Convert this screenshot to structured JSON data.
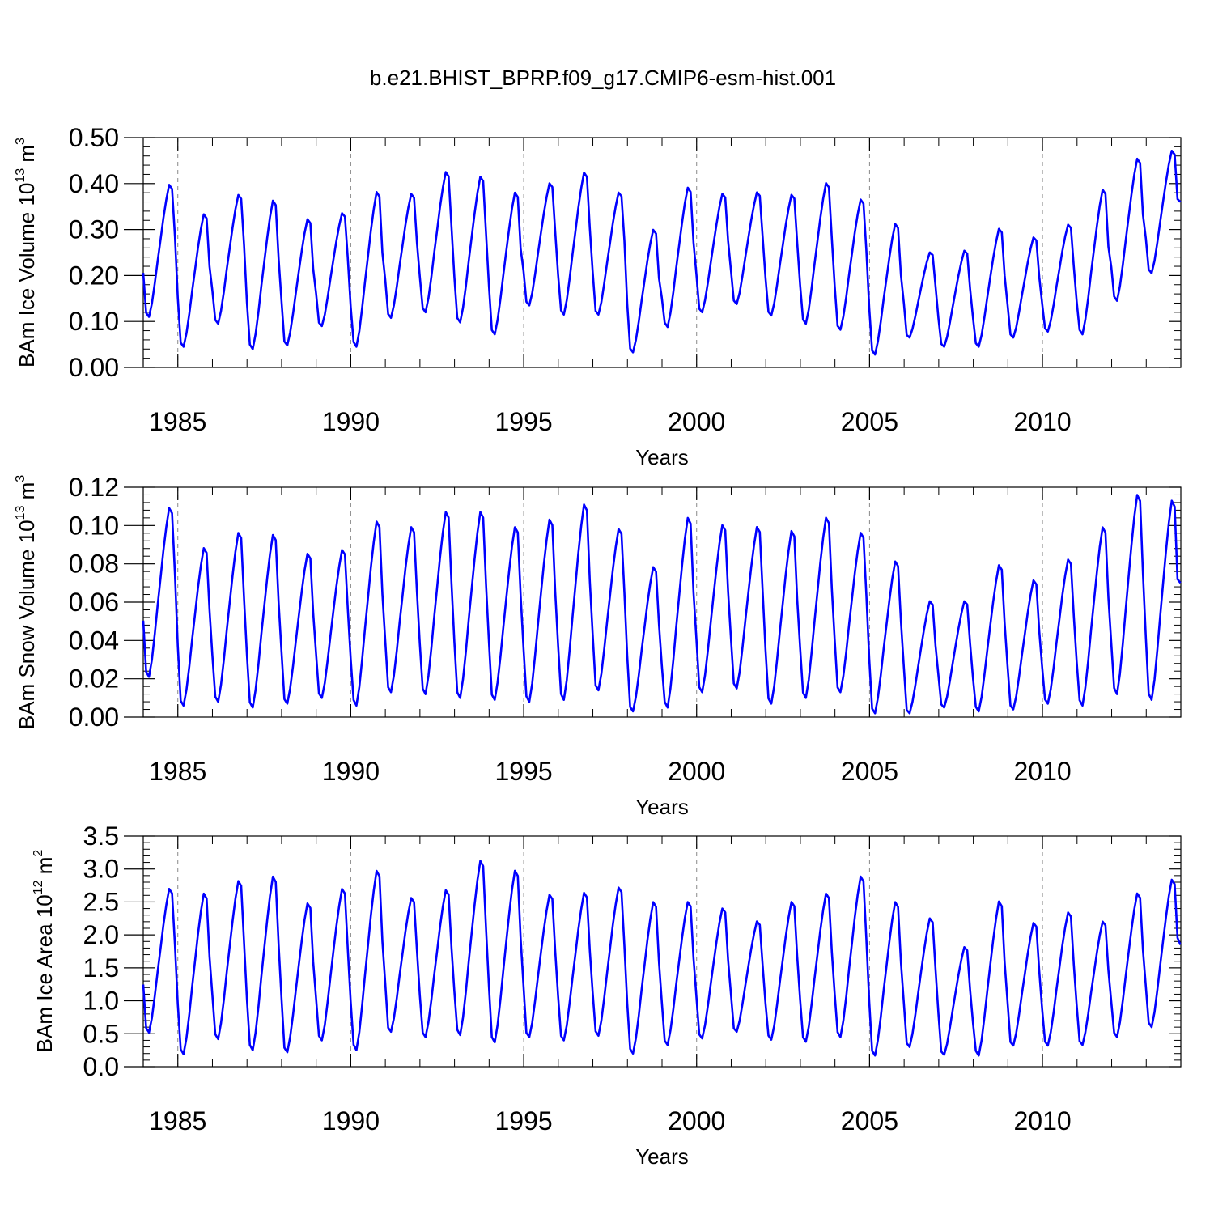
{
  "figure": {
    "title": "b.e21.BHIST_BPRP.f09_g17.CMIP6-esm-hist.001",
    "line_color": "#0000ff",
    "grid_color": "#888888"
  },
  "chart_data": [
    {
      "type": "line",
      "title": "",
      "xlabel": "Years",
      "ylabel": {
        "prefix": "BAm Ice Volume 10",
        "exponent": "13",
        "unit": " m",
        "unit_exponent": "3"
      },
      "xlim": [
        1984.0,
        2014.0
      ],
      "ylim": [
        0.0,
        0.5
      ],
      "x_ticks": [
        1985,
        1990,
        1995,
        2000,
        2005,
        2010
      ],
      "x_tick_labels": [
        "1985",
        "1990",
        "1995",
        "2000",
        "2005",
        "2010"
      ],
      "y_ticks": [
        0.0,
        0.1,
        0.2,
        0.3,
        0.4,
        0.5
      ],
      "y_tick_labels": [
        "0.00",
        "0.10",
        "0.20",
        "0.30",
        "0.40",
        "0.50"
      ],
      "vertical_gridlines": [
        1985,
        1990,
        1995,
        2000,
        2005,
        2010
      ],
      "x_start": 1984.0,
      "x_step": 0.0833,
      "series": [
        {
          "name": "BAm Ice Volume",
          "annual_min": [
            0.11,
            0.045,
            0.095,
            0.04,
            0.048,
            0.09,
            0.045,
            0.108,
            0.12,
            0.098,
            0.072,
            0.135,
            0.115,
            0.115,
            0.033,
            0.088,
            0.12,
            0.138,
            0.113,
            0.095,
            0.082,
            0.028,
            0.065,
            0.045,
            0.045,
            0.065,
            0.078,
            0.072,
            0.145,
            0.205
          ],
          "annual_max": [
            0.4,
            0.336,
            0.378,
            0.366,
            0.325,
            0.338,
            0.385,
            0.38,
            0.428,
            0.418,
            0.383,
            0.403,
            0.427,
            0.383,
            0.302,
            0.394,
            0.38,
            0.383,
            0.378,
            0.404,
            0.368,
            0.315,
            0.252,
            0.256,
            0.304,
            0.285,
            0.313,
            0.39,
            0.457,
            0.474
          ],
          "end_value": 0.36
        }
      ]
    },
    {
      "type": "line",
      "title": "",
      "xlabel": "Years",
      "ylabel": {
        "prefix": "BAm Snow Volume 10",
        "exponent": "13",
        "unit": " m",
        "unit_exponent": "3"
      },
      "xlim": [
        1984.0,
        2014.0
      ],
      "ylim": [
        0.0,
        0.12
      ],
      "x_ticks": [
        1985,
        1990,
        1995,
        2000,
        2005,
        2010
      ],
      "x_tick_labels": [
        "1985",
        "1990",
        "1995",
        "2000",
        "2005",
        "2010"
      ],
      "y_ticks": [
        0.0,
        0.02,
        0.04,
        0.06,
        0.08,
        0.1,
        0.12
      ],
      "y_tick_labels": [
        "0.00",
        "0.02",
        "0.04",
        "0.06",
        "0.08",
        "0.10",
        "0.12"
      ],
      "vertical_gridlines": [
        1985,
        1990,
        1995,
        2000,
        2005,
        2010
      ],
      "x_start": 1984.0,
      "x_step": 0.0833,
      "series": [
        {
          "name": "BAm Snow Volume",
          "annual_min": [
            0.021,
            0.006,
            0.008,
            0.005,
            0.007,
            0.01,
            0.006,
            0.013,
            0.012,
            0.01,
            0.009,
            0.008,
            0.009,
            0.014,
            0.003,
            0.005,
            0.013,
            0.015,
            0.007,
            0.01,
            0.013,
            0.002,
            0.002,
            0.005,
            0.003,
            0.004,
            0.007,
            0.006,
            0.012,
            0.009
          ],
          "annual_max": [
            0.11,
            0.089,
            0.097,
            0.096,
            0.086,
            0.088,
            0.103,
            0.1,
            0.108,
            0.108,
            0.1,
            0.104,
            0.112,
            0.099,
            0.079,
            0.105,
            0.101,
            0.1,
            0.098,
            0.105,
            0.097,
            0.082,
            0.061,
            0.061,
            0.08,
            0.072,
            0.083,
            0.1,
            0.117,
            0.114
          ],
          "end_value": 0.07
        }
      ]
    },
    {
      "type": "line",
      "title": "",
      "xlabel": "Years",
      "ylabel": {
        "prefix": "BAm Ice Area 10",
        "exponent": "12",
        "unit": " m",
        "unit_exponent": "2"
      },
      "xlim": [
        1984.0,
        2014.0
      ],
      "ylim": [
        0.0,
        3.5
      ],
      "x_ticks": [
        1985,
        1990,
        1995,
        2000,
        2005,
        2010
      ],
      "x_tick_labels": [
        "1985",
        "1990",
        "1995",
        "2000",
        "2005",
        "2010"
      ],
      "y_ticks": [
        0.0,
        0.5,
        1.0,
        1.5,
        2.0,
        2.5,
        3.0,
        3.5
      ],
      "y_tick_labels": [
        "0.0",
        "0.5",
        "1.0",
        "1.5",
        "2.0",
        "2.5",
        "3.0",
        "3.5"
      ],
      "vertical_gridlines": [
        1985,
        1990,
        1995,
        2000,
        2005,
        2010
      ],
      "x_start": 1984.0,
      "x_step": 0.0833,
      "series": [
        {
          "name": "BAm Ice Area",
          "annual_min": [
            0.52,
            0.19,
            0.42,
            0.25,
            0.22,
            0.4,
            0.25,
            0.53,
            0.45,
            0.48,
            0.37,
            0.45,
            0.4,
            0.47,
            0.2,
            0.33,
            0.43,
            0.53,
            0.41,
            0.38,
            0.45,
            0.17,
            0.3,
            0.18,
            0.17,
            0.32,
            0.32,
            0.33,
            0.45,
            0.6
          ],
          "annual_max": [
            2.72,
            2.65,
            2.84,
            2.91,
            2.5,
            2.72,
            3.0,
            2.58,
            2.7,
            3.15,
            3.0,
            2.63,
            2.66,
            2.74,
            2.52,
            2.52,
            2.42,
            2.22,
            2.52,
            2.65,
            2.91,
            2.52,
            2.27,
            1.83,
            2.53,
            2.2,
            2.36,
            2.22,
            2.65,
            2.86
          ],
          "end_value": 1.85
        }
      ]
    }
  ]
}
